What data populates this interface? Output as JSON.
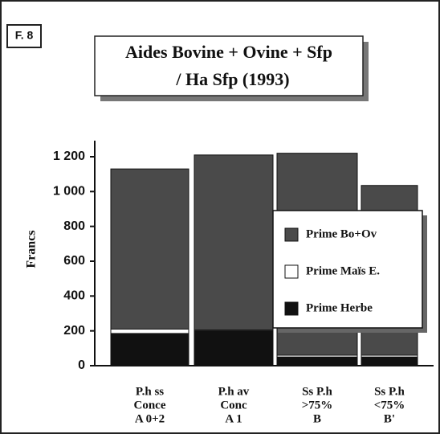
{
  "figure_label": "F. 8",
  "chart_data": {
    "type": "stacked_bar",
    "title": [
      "Aides Bovine + Ovine + Sfp",
      "/ Ha Sfp  (1993)"
    ],
    "ylabel": "Francs",
    "categories": [
      [
        "P.h ss",
        "Conce",
        "A 0+2"
      ],
      [
        "P.h av",
        "Conc",
        "A 1"
      ],
      [
        "Ss P.h",
        ">75%",
        "B"
      ],
      [
        "Ss P.h",
        "<75%",
        "B'"
      ]
    ],
    "series": [
      {
        "name": "Prime Herbe",
        "color": "#111111",
        "values": [
          185,
          200,
          50,
          50
        ]
      },
      {
        "name": "Prime Maïs E.",
        "color": "#ffffff",
        "values": [
          25,
          5,
          10,
          10
        ]
      },
      {
        "name": "Prime Bo+Ov",
        "color": "#4a4a4a",
        "values": [
          920,
          1005,
          1160,
          975
        ]
      }
    ],
    "legend_order": [
      2,
      1,
      0
    ],
    "ylim": [
      0,
      1200
    ],
    "yticks": [
      0,
      200,
      400,
      600,
      800,
      {
        "value": 1000,
        "label": "1 000"
      },
      {
        "value": 1200,
        "label": "1 200"
      }
    ]
  }
}
